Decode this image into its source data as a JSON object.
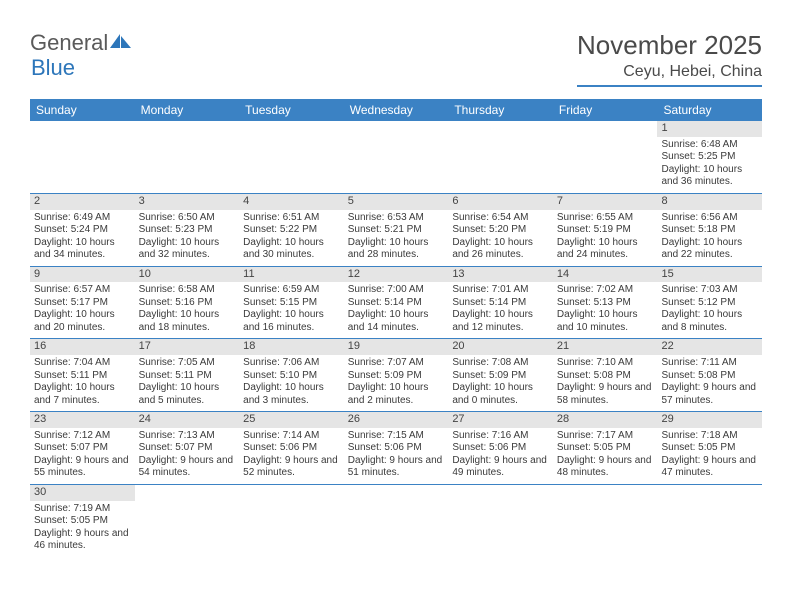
{
  "brand": {
    "general": "General",
    "blue": "Blue"
  },
  "title": "November 2025",
  "location": "Ceyu, Hebei, China",
  "colors": {
    "header_bg": "#3b82c4",
    "daynum_bg": "#e5e5e5",
    "border": "#3b82c4",
    "text": "#3a3a3a",
    "brand_blue": "#2d76ba"
  },
  "day_headers": [
    "Sunday",
    "Monday",
    "Tuesday",
    "Wednesday",
    "Thursday",
    "Friday",
    "Saturday"
  ],
  "weeks": [
    [
      null,
      null,
      null,
      null,
      null,
      null,
      {
        "n": "1",
        "sr": "Sunrise: 6:48 AM",
        "ss": "Sunset: 5:25 PM",
        "dl": "Daylight: 10 hours and 36 minutes."
      }
    ],
    [
      {
        "n": "2",
        "sr": "Sunrise: 6:49 AM",
        "ss": "Sunset: 5:24 PM",
        "dl": "Daylight: 10 hours and 34 minutes."
      },
      {
        "n": "3",
        "sr": "Sunrise: 6:50 AM",
        "ss": "Sunset: 5:23 PM",
        "dl": "Daylight: 10 hours and 32 minutes."
      },
      {
        "n": "4",
        "sr": "Sunrise: 6:51 AM",
        "ss": "Sunset: 5:22 PM",
        "dl": "Daylight: 10 hours and 30 minutes."
      },
      {
        "n": "5",
        "sr": "Sunrise: 6:53 AM",
        "ss": "Sunset: 5:21 PM",
        "dl": "Daylight: 10 hours and 28 minutes."
      },
      {
        "n": "6",
        "sr": "Sunrise: 6:54 AM",
        "ss": "Sunset: 5:20 PM",
        "dl": "Daylight: 10 hours and 26 minutes."
      },
      {
        "n": "7",
        "sr": "Sunrise: 6:55 AM",
        "ss": "Sunset: 5:19 PM",
        "dl": "Daylight: 10 hours and 24 minutes."
      },
      {
        "n": "8",
        "sr": "Sunrise: 6:56 AM",
        "ss": "Sunset: 5:18 PM",
        "dl": "Daylight: 10 hours and 22 minutes."
      }
    ],
    [
      {
        "n": "9",
        "sr": "Sunrise: 6:57 AM",
        "ss": "Sunset: 5:17 PM",
        "dl": "Daylight: 10 hours and 20 minutes."
      },
      {
        "n": "10",
        "sr": "Sunrise: 6:58 AM",
        "ss": "Sunset: 5:16 PM",
        "dl": "Daylight: 10 hours and 18 minutes."
      },
      {
        "n": "11",
        "sr": "Sunrise: 6:59 AM",
        "ss": "Sunset: 5:15 PM",
        "dl": "Daylight: 10 hours and 16 minutes."
      },
      {
        "n": "12",
        "sr": "Sunrise: 7:00 AM",
        "ss": "Sunset: 5:14 PM",
        "dl": "Daylight: 10 hours and 14 minutes."
      },
      {
        "n": "13",
        "sr": "Sunrise: 7:01 AM",
        "ss": "Sunset: 5:14 PM",
        "dl": "Daylight: 10 hours and 12 minutes."
      },
      {
        "n": "14",
        "sr": "Sunrise: 7:02 AM",
        "ss": "Sunset: 5:13 PM",
        "dl": "Daylight: 10 hours and 10 minutes."
      },
      {
        "n": "15",
        "sr": "Sunrise: 7:03 AM",
        "ss": "Sunset: 5:12 PM",
        "dl": "Daylight: 10 hours and 8 minutes."
      }
    ],
    [
      {
        "n": "16",
        "sr": "Sunrise: 7:04 AM",
        "ss": "Sunset: 5:11 PM",
        "dl": "Daylight: 10 hours and 7 minutes."
      },
      {
        "n": "17",
        "sr": "Sunrise: 7:05 AM",
        "ss": "Sunset: 5:11 PM",
        "dl": "Daylight: 10 hours and 5 minutes."
      },
      {
        "n": "18",
        "sr": "Sunrise: 7:06 AM",
        "ss": "Sunset: 5:10 PM",
        "dl": "Daylight: 10 hours and 3 minutes."
      },
      {
        "n": "19",
        "sr": "Sunrise: 7:07 AM",
        "ss": "Sunset: 5:09 PM",
        "dl": "Daylight: 10 hours and 2 minutes."
      },
      {
        "n": "20",
        "sr": "Sunrise: 7:08 AM",
        "ss": "Sunset: 5:09 PM",
        "dl": "Daylight: 10 hours and 0 minutes."
      },
      {
        "n": "21",
        "sr": "Sunrise: 7:10 AM",
        "ss": "Sunset: 5:08 PM",
        "dl": "Daylight: 9 hours and 58 minutes."
      },
      {
        "n": "22",
        "sr": "Sunrise: 7:11 AM",
        "ss": "Sunset: 5:08 PM",
        "dl": "Daylight: 9 hours and 57 minutes."
      }
    ],
    [
      {
        "n": "23",
        "sr": "Sunrise: 7:12 AM",
        "ss": "Sunset: 5:07 PM",
        "dl": "Daylight: 9 hours and 55 minutes."
      },
      {
        "n": "24",
        "sr": "Sunrise: 7:13 AM",
        "ss": "Sunset: 5:07 PM",
        "dl": "Daylight: 9 hours and 54 minutes."
      },
      {
        "n": "25",
        "sr": "Sunrise: 7:14 AM",
        "ss": "Sunset: 5:06 PM",
        "dl": "Daylight: 9 hours and 52 minutes."
      },
      {
        "n": "26",
        "sr": "Sunrise: 7:15 AM",
        "ss": "Sunset: 5:06 PM",
        "dl": "Daylight: 9 hours and 51 minutes."
      },
      {
        "n": "27",
        "sr": "Sunrise: 7:16 AM",
        "ss": "Sunset: 5:06 PM",
        "dl": "Daylight: 9 hours and 49 minutes."
      },
      {
        "n": "28",
        "sr": "Sunrise: 7:17 AM",
        "ss": "Sunset: 5:05 PM",
        "dl": "Daylight: 9 hours and 48 minutes."
      },
      {
        "n": "29",
        "sr": "Sunrise: 7:18 AM",
        "ss": "Sunset: 5:05 PM",
        "dl": "Daylight: 9 hours and 47 minutes."
      }
    ],
    [
      {
        "n": "30",
        "sr": "Sunrise: 7:19 AM",
        "ss": "Sunset: 5:05 PM",
        "dl": "Daylight: 9 hours and 46 minutes."
      },
      null,
      null,
      null,
      null,
      null,
      null
    ]
  ]
}
